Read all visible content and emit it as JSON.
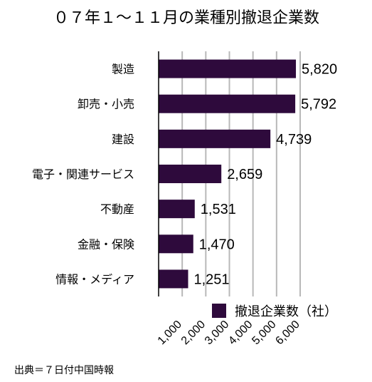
{
  "chart_data": {
    "type": "bar",
    "orientation": "horizontal",
    "title": "０７年１～１１月の業種別撤退企業数",
    "categories": [
      "製造",
      "卸売・小売",
      "建設",
      "電子・関連サービス",
      "不動産",
      "金融・保険",
      "情報・メディア"
    ],
    "series": [
      {
        "name": "撤退企業数（社）",
        "values": [
          5820,
          5792,
          4739,
          2659,
          1531,
          1470,
          1251
        ],
        "value_labels": [
          "5,820",
          "5,792",
          "4,739",
          "2,659",
          "1,531",
          "1,470",
          "1,251"
        ]
      }
    ],
    "x_ticks": [
      1000,
      2000,
      3000,
      4000,
      5000,
      6000
    ],
    "x_tick_labels": [
      "1,000",
      "2,000",
      "3,000",
      "4,000",
      "5,000",
      "6,000"
    ],
    "xlim": [
      0,
      6000
    ],
    "grid": true,
    "legend_position": "bottom-right",
    "bar_color": "#2e0a3c",
    "grid_color": "#b8b8b8"
  },
  "source": "出典＝７日付中国時報"
}
